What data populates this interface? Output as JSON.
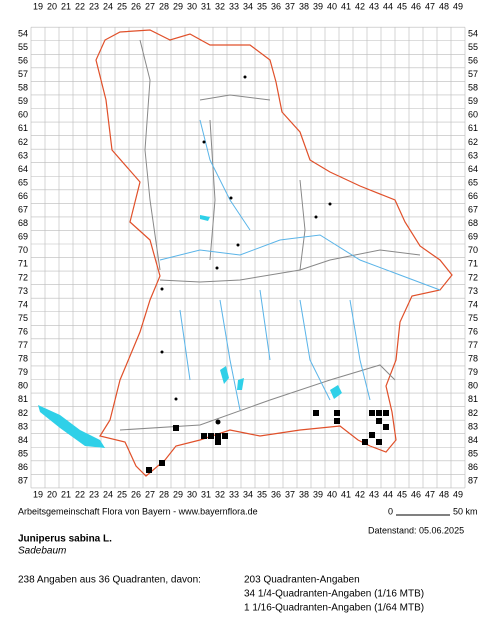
{
  "map": {
    "columns": [
      19,
      20,
      21,
      22,
      23,
      24,
      25,
      26,
      27,
      28,
      29,
      30,
      31,
      32,
      33,
      34,
      35,
      36,
      37,
      38,
      39,
      40,
      41,
      42,
      43,
      44,
      45,
      46,
      47,
      48,
      49
    ],
    "rows": [
      54,
      55,
      56,
      57,
      58,
      59,
      60,
      61,
      62,
      63,
      64,
      65,
      66,
      67,
      68,
      69,
      70,
      71,
      72,
      73,
      74,
      75,
      76,
      77,
      78,
      79,
      80,
      81,
      82,
      83,
      84,
      85,
      86,
      87
    ]
  },
  "footer": {
    "credit": "Arbeitsgemeinschaft Flora von Bayern - www.bayernflora.de",
    "scale_start": "0",
    "scale_end": "50 km",
    "date": "Datenstand: 05.06.2025"
  },
  "species": {
    "name": "Juniperus sabina L.",
    "common": "Sadebaum"
  },
  "stats": {
    "total": "238 Angaben aus 36 Quadranten, davon:",
    "lines": [
      "203 Quadranten-Angaben",
      "34 1/4-Quadranten-Angaben (1/16 MTB)",
      "1 1/16-Quadranten-Angaben (1/64 MTB)"
    ]
  }
}
